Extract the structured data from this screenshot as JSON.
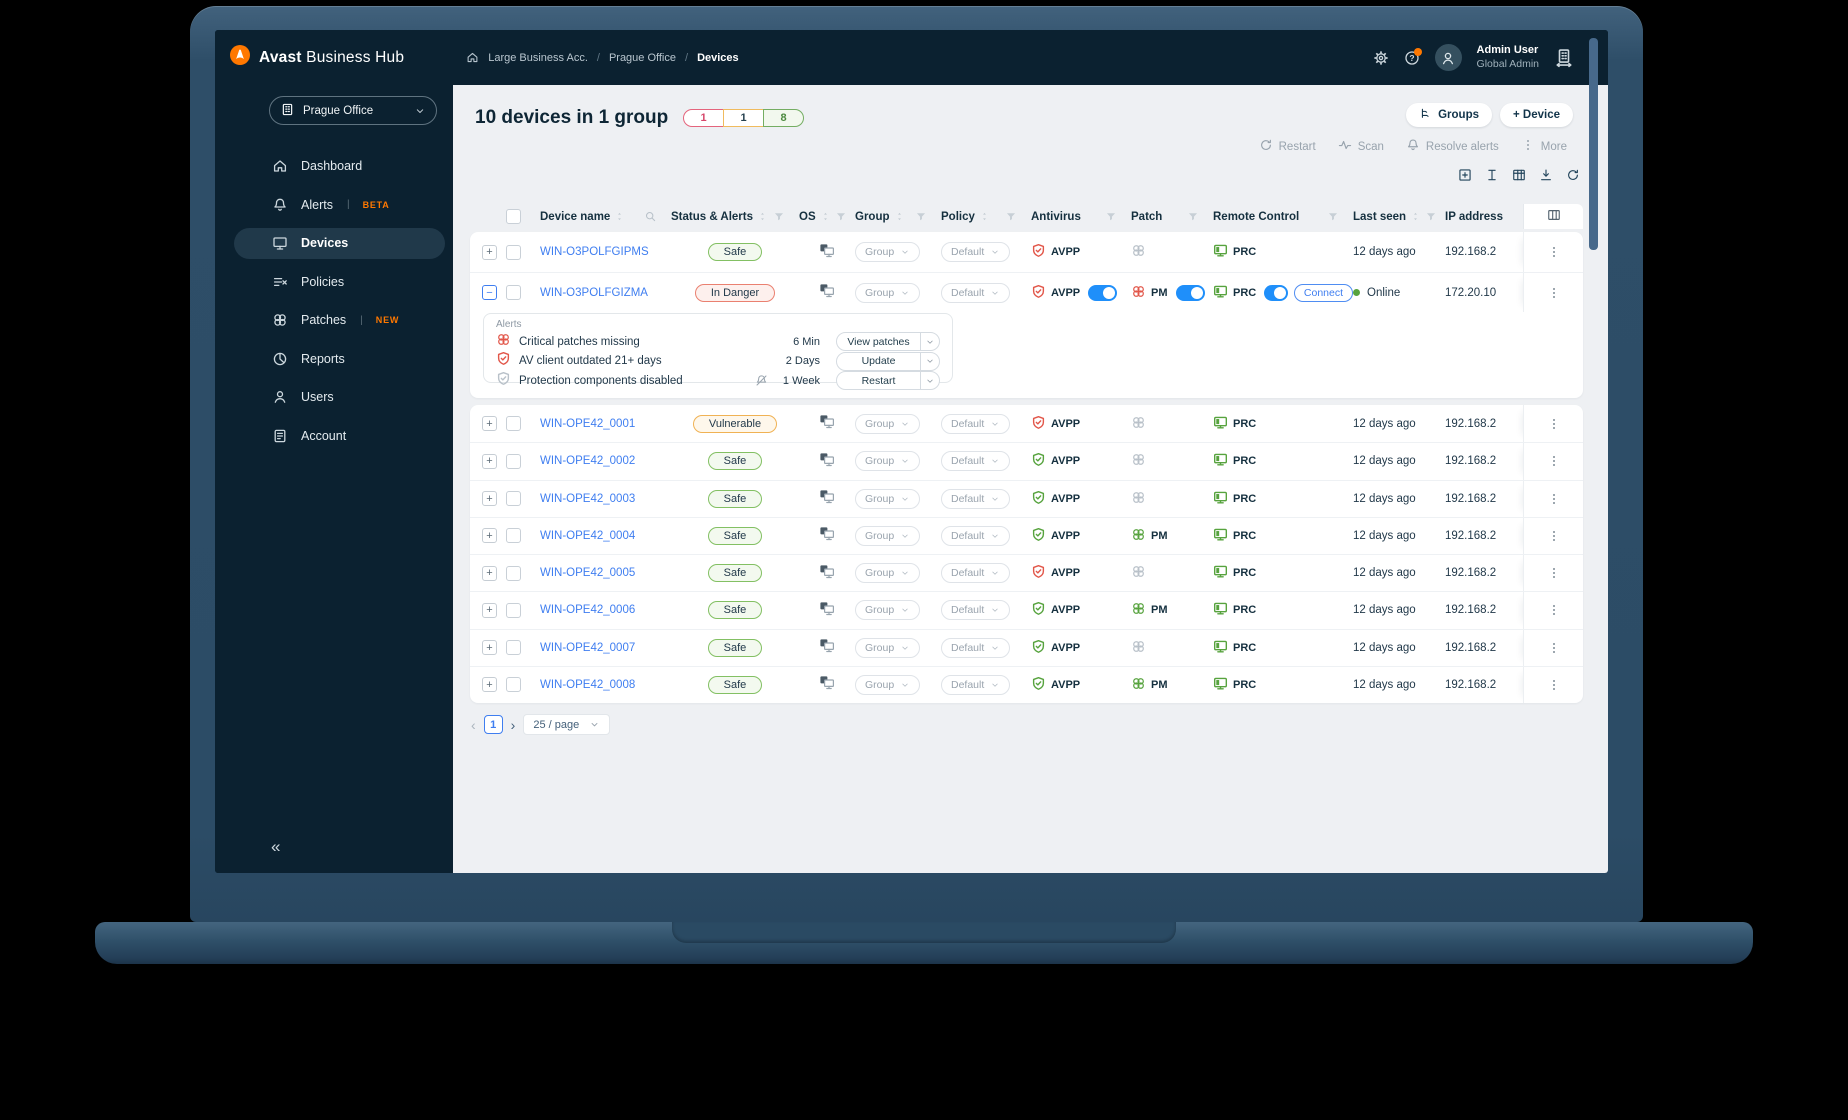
{
  "colors": {
    "accent_orange": "#ff7800",
    "navy": "#0b2130",
    "link_blue": "#3f7ef0",
    "toggle_blue": "#1f8ffa",
    "safe_green": "#57a33e",
    "danger_red": "#e2574a",
    "warning_orange": "#f2b04e",
    "content_bg": "#eef0f3"
  },
  "topbar": {
    "brand_bold": "Avast",
    "brand_rest": " Business Hub",
    "breadcrumbs": [
      "Large Business Acc.",
      "Prague Office",
      "Devices"
    ],
    "user": {
      "name": "Admin User",
      "role": "Global Admin"
    }
  },
  "sidebar": {
    "site_selector": "Prague Office",
    "items": [
      {
        "label": "Dashboard",
        "icon": "home"
      },
      {
        "label": "Alerts",
        "icon": "bell",
        "badge": "BETA"
      },
      {
        "label": "Devices",
        "icon": "monitor",
        "active": true
      },
      {
        "label": "Policies",
        "icon": "policy-list"
      },
      {
        "label": "Patches",
        "icon": "patch",
        "badge": "NEW"
      },
      {
        "label": "Reports",
        "icon": "pie"
      },
      {
        "label": "Users",
        "icon": "person"
      },
      {
        "label": "Account",
        "icon": "doc"
      }
    ],
    "collapse_icon": "«"
  },
  "page": {
    "title": "10 devices in 1 group",
    "status_counts": [
      {
        "value": "1",
        "type": "danger"
      },
      {
        "value": "1",
        "type": "warning"
      },
      {
        "value": "8",
        "type": "success"
      }
    ],
    "buttons": {
      "groups": "Groups",
      "add_device": "+ Device"
    },
    "bulk_actions": [
      "Restart",
      "Scan",
      "Resolve alerts",
      "More"
    ]
  },
  "table": {
    "headers": [
      {
        "label": "Device name",
        "sort": true,
        "search": true,
        "col": "name"
      },
      {
        "label": "Status & Alerts",
        "sort": true,
        "filter": true,
        "col": "status"
      },
      {
        "label": "OS",
        "sort": true,
        "filter": true,
        "col": "os"
      },
      {
        "label": "Group",
        "sort": true,
        "filter": true,
        "col": "group"
      },
      {
        "label": "Policy",
        "sort": true,
        "filter": true,
        "col": "policy"
      },
      {
        "label": "Antivirus",
        "filter": true,
        "col": "av"
      },
      {
        "label": "Patch",
        "filter": true,
        "col": "patch"
      },
      {
        "label": "Remote Control",
        "filter": true,
        "col": "rc"
      },
      {
        "label": "Last seen",
        "sort": true,
        "filter": true,
        "col": "last"
      },
      {
        "label": "IP address",
        "col": "ip"
      }
    ],
    "rows": [
      {
        "name": "WIN-O3POLFGIPMS",
        "status": "Safe",
        "status_type": "safe",
        "group": "Group",
        "policy": "Default",
        "antivirus": {
          "label": "AVPP",
          "severity": "danger"
        },
        "patch": {
          "severity": "muted"
        },
        "remote": {
          "label": "PRC"
        },
        "last_seen": "12 days ago",
        "ip": "192.168.2"
      },
      {
        "name": "WIN-O3POLFGIZMA",
        "status": "In Danger",
        "status_type": "danger",
        "group": "Group",
        "policy": "Default",
        "expanded": true,
        "antivirus": {
          "label": "AVPP",
          "severity": "danger",
          "toggle": true
        },
        "patch": {
          "label": "PM",
          "severity": "danger",
          "toggle": true
        },
        "remote": {
          "label": "PRC",
          "toggle": true,
          "connect": "Connect"
        },
        "online": true,
        "last_seen": "Online",
        "ip": "172.20.10"
      },
      {
        "name": "WIN-OPE42_0001",
        "status": "Vulnerable",
        "status_type": "warning",
        "group": "Group",
        "policy": "Default",
        "antivirus": {
          "label": "AVPP",
          "severity": "danger"
        },
        "patch": {
          "severity": "muted"
        },
        "remote": {
          "label": "PRC"
        },
        "last_seen": "12 days ago",
        "ip": "192.168.2"
      },
      {
        "name": "WIN-OPE42_0002",
        "status": "Safe",
        "status_type": "safe",
        "group": "Group",
        "policy": "Default",
        "antivirus": {
          "label": "AVPP",
          "severity": "success"
        },
        "patch": {
          "severity": "muted"
        },
        "remote": {
          "label": "PRC"
        },
        "last_seen": "12 days ago",
        "ip": "192.168.2"
      },
      {
        "name": "WIN-OPE42_0003",
        "status": "Safe",
        "status_type": "safe",
        "group": "Group",
        "policy": "Default",
        "antivirus": {
          "label": "AVPP",
          "severity": "success"
        },
        "patch": {
          "severity": "muted"
        },
        "remote": {
          "label": "PRC"
        },
        "last_seen": "12 days ago",
        "ip": "192.168.2"
      },
      {
        "name": "WIN-OPE42_0004",
        "status": "Safe",
        "status_type": "safe",
        "group": "Group",
        "policy": "Default",
        "antivirus": {
          "label": "AVPP",
          "severity": "success"
        },
        "patch": {
          "label": "PM",
          "severity": "success"
        },
        "remote": {
          "label": "PRC"
        },
        "last_seen": "12 days ago",
        "ip": "192.168.2"
      },
      {
        "name": "WIN-OPE42_0005",
        "status": "Safe",
        "status_type": "safe",
        "group": "Group",
        "policy": "Default",
        "antivirus": {
          "label": "AVPP",
          "severity": "danger"
        },
        "patch": {
          "severity": "muted"
        },
        "remote": {
          "label": "PRC"
        },
        "last_seen": "12 days ago",
        "ip": "192.168.2"
      },
      {
        "name": "WIN-OPE42_0006",
        "status": "Safe",
        "status_type": "safe",
        "group": "Group",
        "policy": "Default",
        "antivirus": {
          "label": "AVPP",
          "severity": "success"
        },
        "patch": {
          "label": "PM",
          "severity": "success"
        },
        "remote": {
          "label": "PRC"
        },
        "last_seen": "12 days ago",
        "ip": "192.168.2"
      },
      {
        "name": "WIN-OPE42_0007",
        "status": "Safe",
        "status_type": "safe",
        "group": "Group",
        "policy": "Default",
        "antivirus": {
          "label": "AVPP",
          "severity": "success"
        },
        "patch": {
          "severity": "muted"
        },
        "remote": {
          "label": "PRC"
        },
        "last_seen": "12 days ago",
        "ip": "192.168.2"
      },
      {
        "name": "WIN-OPE42_0008",
        "status": "Safe",
        "status_type": "safe",
        "group": "Group",
        "policy": "Default",
        "antivirus": {
          "label": "AVPP",
          "severity": "success"
        },
        "patch": {
          "label": "PM",
          "severity": "success"
        },
        "remote": {
          "label": "PRC"
        },
        "last_seen": "12 days ago",
        "ip": "192.168.2"
      }
    ]
  },
  "alerts_panel": {
    "title": "Alerts",
    "items": [
      {
        "icon": "patch",
        "severity": "danger",
        "text": "Critical patches missing",
        "time": "6 Min",
        "action": "View patches"
      },
      {
        "icon": "shield",
        "severity": "danger",
        "text": "AV client outdated 21+ days",
        "time": "2 Days",
        "action": "Update"
      },
      {
        "icon": "shield",
        "severity": "muted",
        "muted": true,
        "text": "Protection components disabled",
        "time": "1 Week",
        "action": "Restart"
      }
    ]
  },
  "pagination": {
    "prev": "‹",
    "page": "1",
    "next": "›",
    "per_page": "25 / page"
  }
}
